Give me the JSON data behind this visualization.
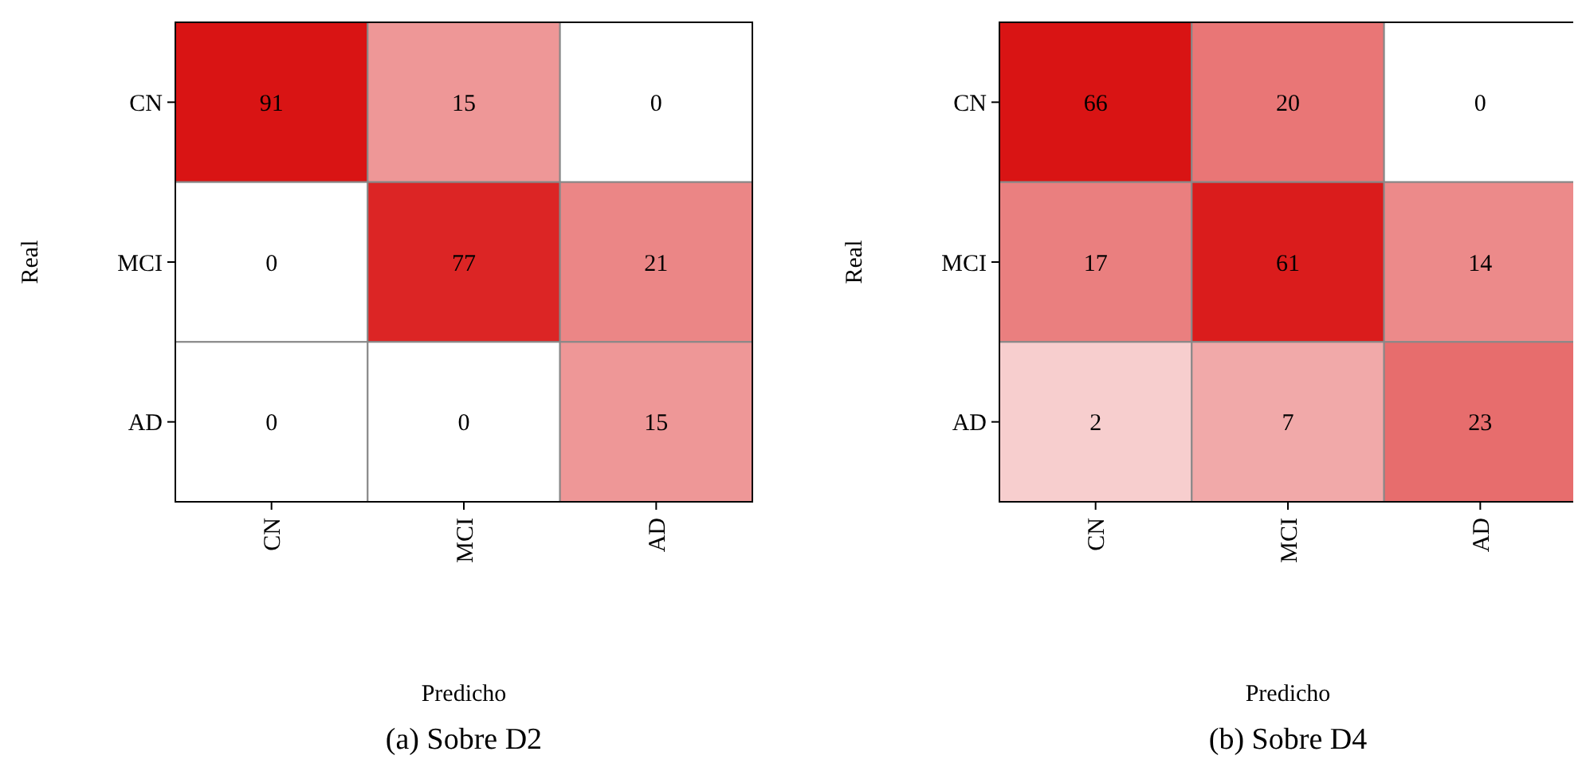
{
  "chart_data": [
    {
      "type": "heatmap",
      "title": "(a) Sobre D2",
      "xlabel": "Predicho",
      "ylabel": "Real",
      "categories": [
        "CN",
        "MCI",
        "AD"
      ],
      "y_categories": [
        "CN",
        "MCI",
        "AD"
      ],
      "data_labels": true,
      "cells": [
        [
          91,
          15,
          0
        ],
        [
          0,
          77,
          21
        ],
        [
          0,
          0,
          15
        ]
      ]
    },
    {
      "type": "heatmap",
      "title": "(b) Sobre D4",
      "xlabel": "Predicho",
      "ylabel": "Real",
      "categories": [
        "CN",
        "MCI",
        "AD"
      ],
      "y_categories": [
        "CN",
        "MCI",
        "AD"
      ],
      "data_labels": true,
      "cells": [
        [
          66,
          20,
          0
        ],
        [
          17,
          61,
          14
        ],
        [
          2,
          7,
          23
        ]
      ]
    }
  ]
}
